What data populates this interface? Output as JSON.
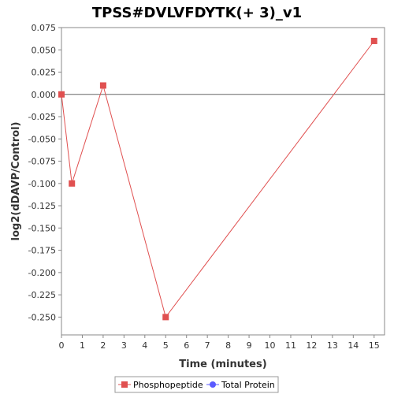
{
  "chart_data": {
    "type": "line",
    "title": "TPSS#DVLVFDYTK(+ 3)_v1",
    "xlabel": "Time (minutes)",
    "ylabel": "log2(dDAVP/Control)",
    "xlim": [
      0,
      15.5
    ],
    "ylim": [
      -0.27,
      0.075
    ],
    "xticks": [
      0,
      1,
      2,
      3,
      4,
      5,
      6,
      7,
      8,
      9,
      10,
      11,
      12,
      13,
      14,
      15
    ],
    "yticks": [
      0.075,
      0.05,
      0.025,
      0.0,
      -0.025,
      -0.05,
      -0.075,
      -0.1,
      -0.125,
      -0.15,
      -0.175,
      -0.2,
      -0.225,
      -0.25
    ],
    "ytick_labels": [
      "0.075",
      "0.050",
      "0.025",
      "0.000",
      "-0.025",
      "-0.050",
      "-0.075",
      "-0.100",
      "-0.125",
      "-0.150",
      "-0.175",
      "-0.200",
      "-0.225",
      "-0.250"
    ],
    "zero_line": true,
    "grid": false,
    "legend_position": "bottom",
    "series": [
      {
        "name": "Phosphopeptide",
        "color": "#e05050",
        "marker": "square",
        "x": [
          0,
          0.5,
          2,
          5,
          15
        ],
        "y": [
          0.0,
          -0.1,
          0.01,
          -0.25,
          0.06
        ]
      },
      {
        "name": "Total Protein",
        "color": "#5a5aff",
        "marker": "circle",
        "x": [],
        "y": []
      }
    ]
  }
}
